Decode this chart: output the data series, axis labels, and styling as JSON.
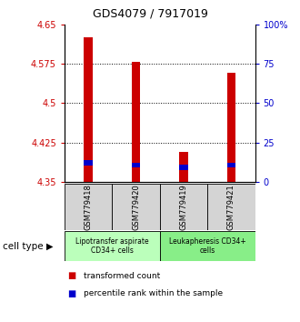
{
  "title": "GDS4079 / 7917019",
  "samples": [
    "GSM779418",
    "GSM779420",
    "GSM779419",
    "GSM779421"
  ],
  "transformed_counts": [
    4.625,
    4.578,
    4.407,
    4.557
  ],
  "percentile_ranks": [
    4.382,
    4.377,
    4.373,
    4.377
  ],
  "bar_bottom": 4.35,
  "ylim_min": 4.35,
  "ylim_max": 4.65,
  "yticks": [
    4.35,
    4.425,
    4.5,
    4.575,
    4.65
  ],
  "ytick_labels": [
    "4.35",
    "4.425",
    "4.5",
    "4.575",
    "4.65"
  ],
  "right_yticks": [
    0,
    25,
    50,
    75,
    100
  ],
  "right_ytick_labels": [
    "0",
    "25",
    "50",
    "75",
    "100%"
  ],
  "left_axis_color": "#cc0000",
  "right_axis_color": "#0000cc",
  "bar_color_red": "#cc0000",
  "bar_color_blue": "#0000cc",
  "groups": [
    {
      "label": "Lipotransfer aspirate\nCD34+ cells",
      "samples": [
        0,
        1
      ],
      "color": "#bbffbb"
    },
    {
      "label": "Leukapheresis CD34+\ncells",
      "samples": [
        2,
        3
      ],
      "color": "#88ee88"
    }
  ],
  "cell_type_label": "cell type",
  "legend_red_label": "transformed count",
  "legend_blue_label": "percentile rank within the sample",
  "bar_width": 0.18,
  "blue_bar_height": 0.01,
  "gridlines": [
    4.425,
    4.5,
    4.575
  ]
}
